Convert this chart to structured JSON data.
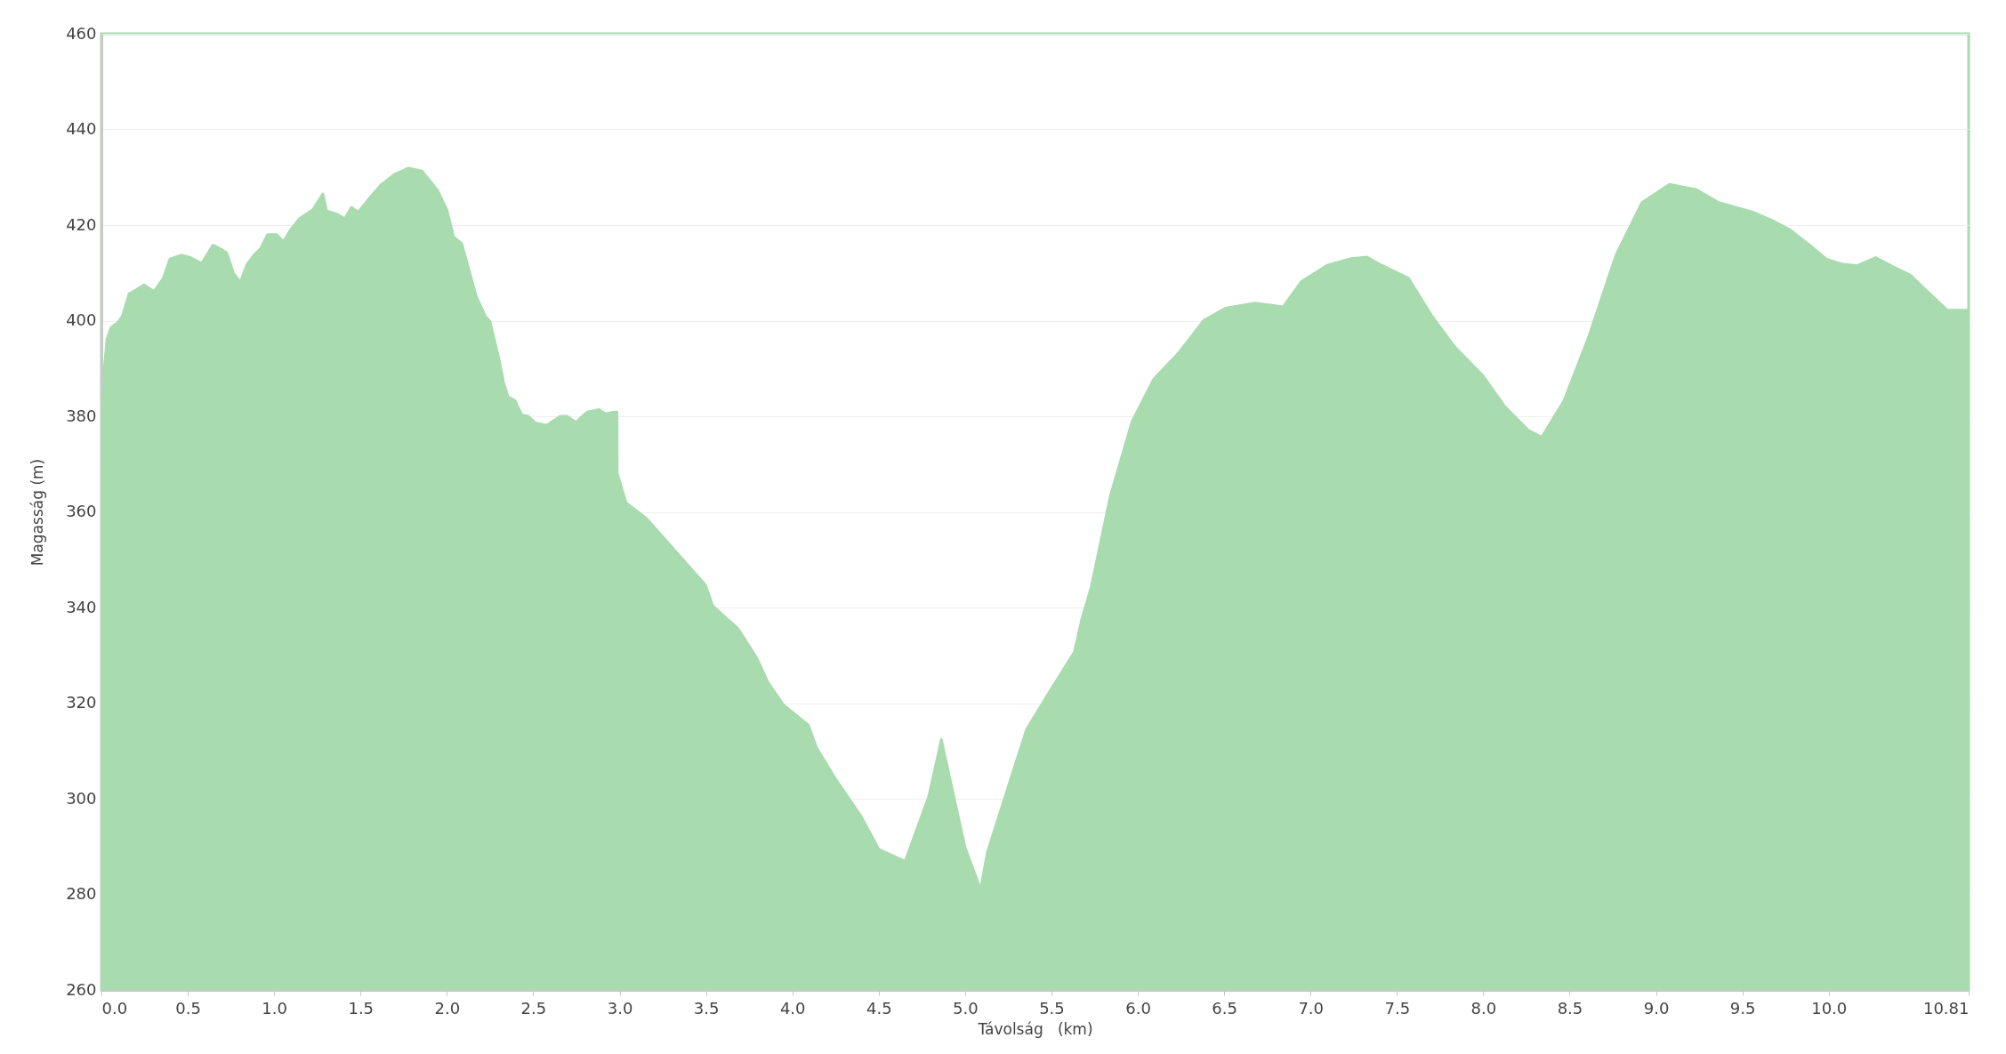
{
  "chart_data": {
    "type": "area",
    "xlabel": "Távolság   (km)",
    "ylabel": "Magasság (m)",
    "xlim": [
      0,
      10.81
    ],
    "ylim": [
      260,
      460
    ],
    "xticks": [
      {
        "value": 0,
        "label": "0.0"
      },
      0.5,
      {
        "value": 1,
        "label": "1.0"
      },
      1.5,
      {
        "value": 2,
        "label": "2.0"
      },
      2.5,
      {
        "value": 3,
        "label": "3.0"
      },
      3.5,
      {
        "value": 4,
        "label": "4.0"
      },
      4.5,
      {
        "value": 5,
        "label": "5.0"
      },
      5.5,
      {
        "value": 6,
        "label": "6.0"
      },
      6.5,
      {
        "value": 7,
        "label": "7.0"
      },
      7.5,
      {
        "value": 8,
        "label": "8.0"
      },
      8.5,
      {
        "value": 9,
        "label": "9.0"
      },
      9.5,
      {
        "value": 10,
        "label": "10.0"
      },
      10.81
    ],
    "yticks": [
      260,
      280,
      300,
      320,
      340,
      360,
      380,
      400,
      420,
      440,
      460
    ],
    "grid": "y",
    "series": [
      {
        "color": "#a8dbae",
        "x": [
          0.0,
          0.005,
          0.016,
          0.032,
          0.055,
          0.095,
          0.121,
          0.16,
          0.2,
          0.247,
          0.305,
          0.357,
          0.397,
          0.462,
          0.515,
          0.581,
          0.646,
          0.699,
          0.725,
          0.765,
          0.804,
          0.843,
          0.883,
          0.922,
          0.962,
          1.014,
          1.054,
          1.093,
          1.146,
          1.224,
          1.282,
          1.303,
          1.369,
          1.408,
          1.448,
          1.487,
          1.54,
          1.618,
          1.697,
          1.776,
          1.855,
          1.947,
          2.0,
          2.039,
          2.086,
          2.17,
          2.223,
          2.249,
          2.302,
          2.328,
          2.354,
          2.394,
          2.433,
          2.472,
          2.512,
          2.578,
          2.656,
          2.696,
          2.748,
          2.775,
          2.814,
          2.88,
          2.919,
          2.971,
          2.985,
          2.986,
          3.037,
          3.156,
          3.497,
          3.54,
          3.685,
          3.793,
          3.858,
          3.949,
          4.093,
          4.14,
          4.249,
          4.393,
          4.501,
          4.653,
          4.79,
          4.863,
          4.884,
          5.0,
          5.09,
          5.129,
          5.356,
          5.5,
          5.633,
          5.674,
          5.731,
          5.841,
          5.966,
          6.091,
          6.235,
          6.383,
          6.508,
          6.679,
          6.842,
          6.948,
          7.096,
          7.236,
          7.327,
          7.395,
          7.566,
          7.702,
          7.835,
          7.998,
          8.123,
          8.26,
          8.339,
          8.468,
          8.612,
          8.768,
          8.919,
          9.078,
          9.234,
          9.363,
          9.56,
          9.67,
          9.776,
          9.882,
          9.985,
          10.079,
          10.166,
          10.272,
          10.367,
          10.473,
          10.58,
          10.686,
          10.81
        ],
        "values": [
          365.3,
          365.3,
          389.5,
          396.1,
          398.5,
          399.6,
          400.9,
          405.6,
          406.4,
          407.5,
          406.1,
          408.8,
          412.9,
          413.7,
          413.2,
          412,
          415.8,
          414.8,
          414.2,
          409.9,
          408,
          411.8,
          413.7,
          415.1,
          418,
          418,
          416.5,
          418.9,
          421.3,
          423.2,
          426.5,
          423,
          422.2,
          421.3,
          423.7,
          422.7,
          425.1,
          428.4,
          430.6,
          431.9,
          431.3,
          427.2,
          423.2,
          417.5,
          416.1,
          405.1,
          400.9,
          399.9,
          391.9,
          387.1,
          384.1,
          383.3,
          380.3,
          380,
          378.6,
          378.1,
          380,
          380,
          378.7,
          379.7,
          380.9,
          381.4,
          380.5,
          380.9,
          380.9,
          368.1,
          361.9,
          358.6,
          344.7,
          340.3,
          335.6,
          329.5,
          324.4,
          319.6,
          315.4,
          310.7,
          304.2,
          296.6,
          289.4,
          286.9,
          300.5,
          312.4,
          308.8,
          289.8,
          281,
          288.8,
          314.5,
          323,
          330.7,
          337.3,
          344.4,
          363.3,
          378.8,
          387.7,
          393.2,
          400.1,
          402.6,
          403.7,
          402.9,
          408.2,
          411.6,
          413,
          413.3,
          411.9,
          408.9,
          401,
          394.5,
          388.5,
          382.1,
          377.1,
          375.6,
          383.3,
          396.8,
          413.7,
          424.7,
          428.5,
          427.4,
          424.7,
          422.7,
          421,
          419,
          416,
          412.9,
          411.8,
          411.5,
          413.2,
          411.4,
          409.5,
          405.8,
          402.2,
          402.2
        ]
      }
    ]
  }
}
